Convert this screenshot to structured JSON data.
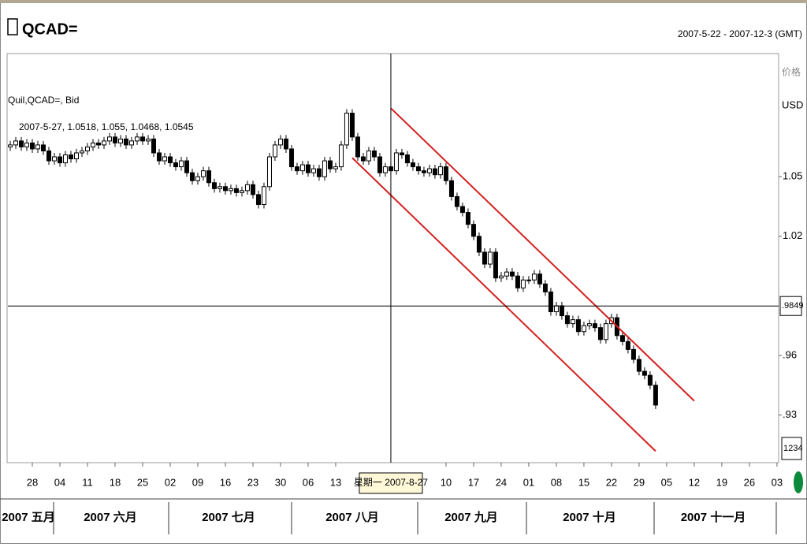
{
  "chart_data": {
    "type": "candlestick",
    "title": "QCAD=",
    "date_range": "2007-5-22 - 2007-12-3 (GMT)",
    "series_label": "Quil,QCAD=, Bid",
    "ohlc_label": "2007-5-27, 1.0518, 1.055, 1.0468, 1.0545",
    "axis_header": "价格",
    "currency": "USD",
    "x": [
      -4,
      -3,
      -2,
      -1,
      0,
      1,
      2,
      3,
      4,
      5,
      6,
      7,
      8,
      9,
      10,
      11,
      12,
      13,
      14,
      15,
      16,
      17,
      18,
      19,
      20,
      21,
      22,
      23,
      24,
      25,
      26,
      27,
      28,
      29,
      30,
      31,
      32,
      33,
      34,
      35,
      36,
      37,
      38,
      39,
      40,
      41,
      42,
      43,
      44,
      45,
      46,
      47,
      48,
      49,
      50,
      51,
      52,
      53,
      54,
      55,
      56,
      57,
      58,
      59,
      60,
      61,
      62,
      63,
      64,
      65,
      66,
      67,
      68,
      69,
      70,
      71,
      72,
      73,
      74,
      75,
      76,
      77,
      78,
      79,
      80,
      81,
      82,
      83,
      84,
      85,
      86,
      87,
      88,
      89,
      90,
      91,
      92,
      93,
      94,
      95,
      96,
      97,
      98,
      99,
      100,
      101,
      102,
      103,
      104,
      105,
      106,
      107,
      108,
      109,
      110,
      111,
      112,
      113
    ],
    "open": [
      1.065,
      1.066,
      1.068,
      1.065,
      1.067,
      1.064,
      1.066,
      1.063,
      1.058,
      1.06,
      1.057,
      1.061,
      1.059,
      1.062,
      1.063,
      1.065,
      1.067,
      1.066,
      1.068,
      1.07,
      1.067,
      1.069,
      1.066,
      1.068,
      1.07,
      1.068,
      1.069,
      1.062,
      1.058,
      1.06,
      1.057,
      1.055,
      1.058,
      1.052,
      1.048,
      1.05,
      1.053,
      1.047,
      1.044,
      1.045,
      1.043,
      1.044,
      1.042,
      1.043,
      1.046,
      1.041,
      1.036,
      1.045,
      1.06,
      1.066,
      1.069,
      1.064,
      1.055,
      1.053,
      1.056,
      1.052,
      1.054,
      1.05,
      1.058,
      1.054,
      1.055,
      1.066,
      1.082,
      1.07,
      1.06,
      1.058,
      1.063,
      1.06,
      1.052,
      1.055,
      1.053,
      1.062,
      1.061,
      1.057,
      1.055,
      1.053,
      1.052,
      1.054,
      1.051,
      1.055,
      1.048,
      1.04,
      1.035,
      1.032,
      1.026,
      1.02,
      1.012,
      1.006,
      1.012,
      0.999,
      1.0,
      1.002,
      1.0,
      0.994,
      0.998,
      0.998,
      1.001,
      0.996,
      0.992,
      0.982,
      0.985,
      0.98,
      0.976,
      0.978,
      0.972,
      0.975,
      0.976,
      0.974,
      0.968,
      0.976,
      0.979,
      0.97,
      0.967,
      0.963,
      0.958,
      0.952,
      0.95,
      0.945
    ],
    "high": [
      1.068,
      1.07,
      1.07,
      1.069,
      1.069,
      1.068,
      1.068,
      1.065,
      1.062,
      1.062,
      1.063,
      1.063,
      1.064,
      1.065,
      1.067,
      1.069,
      1.069,
      1.07,
      1.072,
      1.072,
      1.071,
      1.071,
      1.07,
      1.072,
      1.072,
      1.071,
      1.071,
      1.064,
      1.062,
      1.062,
      1.059,
      1.06,
      1.06,
      1.054,
      1.052,
      1.055,
      1.055,
      1.049,
      1.047,
      1.047,
      1.046,
      1.046,
      1.045,
      1.048,
      1.048,
      1.043,
      1.047,
      1.062,
      1.068,
      1.071,
      1.071,
      1.066,
      1.057,
      1.058,
      1.058,
      1.056,
      1.056,
      1.06,
      1.06,
      1.057,
      1.068,
      1.084,
      1.084,
      1.072,
      1.062,
      1.065,
      1.065,
      1.062,
      1.057,
      1.057,
      1.064,
      1.064,
      1.063,
      1.059,
      1.057,
      1.055,
      1.056,
      1.056,
      1.057,
      1.057,
      1.05,
      1.042,
      1.037,
      1.034,
      1.028,
      1.022,
      1.014,
      1.014,
      1.014,
      1.002,
      1.004,
      1.004,
      1.002,
      1.0,
      1.0,
      1.003,
      1.003,
      0.998,
      0.994,
      0.987,
      0.987,
      0.982,
      0.98,
      0.98,
      0.977,
      0.978,
      0.978,
      0.976,
      0.978,
      0.981,
      0.981,
      0.972,
      0.969,
      0.965,
      0.96,
      0.954,
      0.952,
      0.947
    ],
    "low": [
      1.063,
      1.064,
      1.063,
      1.063,
      1.062,
      1.062,
      1.061,
      1.056,
      1.056,
      1.055,
      1.055,
      1.057,
      1.057,
      1.06,
      1.061,
      1.063,
      1.064,
      1.064,
      1.066,
      1.065,
      1.065,
      1.064,
      1.064,
      1.066,
      1.066,
      1.066,
      1.06,
      1.056,
      1.056,
      1.055,
      1.053,
      1.053,
      1.05,
      1.046,
      1.046,
      1.048,
      1.045,
      1.042,
      1.042,
      1.041,
      1.041,
      1.04,
      1.04,
      1.041,
      1.039,
      1.034,
      1.034,
      1.043,
      1.058,
      1.064,
      1.062,
      1.053,
      1.051,
      1.051,
      1.05,
      1.05,
      1.048,
      1.048,
      1.052,
      1.052,
      1.053,
      1.064,
      1.068,
      1.058,
      1.056,
      1.056,
      1.058,
      1.05,
      1.05,
      1.051,
      1.051,
      1.059,
      1.055,
      1.053,
      1.051,
      1.05,
      1.05,
      1.049,
      1.049,
      1.046,
      1.038,
      1.033,
      1.03,
      1.024,
      1.018,
      1.01,
      1.004,
      1.004,
      0.997,
      0.997,
      0.998,
      0.998,
      0.992,
      0.992,
      0.996,
      0.996,
      0.994,
      0.99,
      0.98,
      0.98,
      0.978,
      0.974,
      0.974,
      0.97,
      0.97,
      0.973,
      0.972,
      0.966,
      0.966,
      0.974,
      0.968,
      0.965,
      0.961,
      0.956,
      0.95,
      0.948,
      0.943,
      0.933
    ],
    "close": [
      1.066,
      1.068,
      1.065,
      1.067,
      1.064,
      1.066,
      1.063,
      1.058,
      1.06,
      1.057,
      1.061,
      1.059,
      1.062,
      1.063,
      1.065,
      1.067,
      1.066,
      1.068,
      1.07,
      1.067,
      1.069,
      1.066,
      1.068,
      1.07,
      1.068,
      1.069,
      1.062,
      1.058,
      1.06,
      1.057,
      1.055,
      1.058,
      1.052,
      1.048,
      1.05,
      1.053,
      1.047,
      1.044,
      1.045,
      1.043,
      1.044,
      1.042,
      1.043,
      1.046,
      1.041,
      1.036,
      1.045,
      1.06,
      1.066,
      1.069,
      1.064,
      1.055,
      1.053,
      1.056,
      1.052,
      1.054,
      1.05,
      1.058,
      1.054,
      1.055,
      1.066,
      1.082,
      1.07,
      1.06,
      1.058,
      1.063,
      1.06,
      1.052,
      1.055,
      1.053,
      1.062,
      1.061,
      1.057,
      1.055,
      1.053,
      1.052,
      1.054,
      1.051,
      1.055,
      1.048,
      1.04,
      1.035,
      1.032,
      1.026,
      1.02,
      1.012,
      1.006,
      1.012,
      0.999,
      1.0,
      1.002,
      1.0,
      0.994,
      0.998,
      0.998,
      1.001,
      0.996,
      0.992,
      0.982,
      0.985,
      0.98,
      0.976,
      0.978,
      0.972,
      0.975,
      0.976,
      0.974,
      0.968,
      0.976,
      0.979,
      0.97,
      0.967,
      0.963,
      0.958,
      0.952,
      0.95,
      0.945,
      0.935
    ],
    "up_color": "#ffffff",
    "down_color": "#000000",
    "xlim": [
      -4.43,
      135.3
    ],
    "ylim": [
      0.906,
      1.112
    ],
    "xticks": [
      {
        "value": 0,
        "label": "28"
      },
      {
        "value": 5,
        "label": "04"
      },
      {
        "value": 10,
        "label": "11"
      },
      {
        "value": 15,
        "label": "18"
      },
      {
        "value": 20,
        "label": "25"
      },
      {
        "value": 25,
        "label": "02"
      },
      {
        "value": 30,
        "label": "09"
      },
      {
        "value": 35,
        "label": "16"
      },
      {
        "value": 40,
        "label": "23"
      },
      {
        "value": 45,
        "label": "30"
      },
      {
        "value": 50,
        "label": "06"
      },
      {
        "value": 55,
        "label": "13"
      },
      {
        "value": 75,
        "label": "10"
      },
      {
        "value": 80,
        "label": "17"
      },
      {
        "value": 85,
        "label": "24"
      },
      {
        "value": 90,
        "label": "01"
      },
      {
        "value": 95,
        "label": "08"
      },
      {
        "value": 100,
        "label": "15"
      },
      {
        "value": 105,
        "label": "22"
      },
      {
        "value": 110,
        "label": "29"
      },
      {
        "value": 115,
        "label": "05"
      },
      {
        "value": 120,
        "label": "12"
      },
      {
        "value": 125,
        "label": "19"
      },
      {
        "value": 130,
        "label": "26"
      },
      {
        "value": 135,
        "label": "03"
      }
    ],
    "yticks": [
      1.05,
      1.02,
      {
        "value": 0.96,
        "label": ".96"
      },
      {
        "value": 0.93,
        "label": ".93"
      }
    ],
    "month_labels": [
      "2007 五月",
      "2007 六月",
      "2007 七月",
      "2007 八月",
      "2007 九月",
      "2007 十月",
      "2007 十一月"
    ],
    "trend_lines": [
      {
        "color": "#d42020",
        "x": [
          65,
          120
        ],
        "y": [
          1.0845,
          0.9371
        ]
      },
      {
        "color": "#d42020",
        "x": [
          58,
          113
        ],
        "y": [
          1.0595,
          0.9118
        ]
      }
    ],
    "crosshair": {
      "x": 65,
      "y": 0.9849,
      "x_label": "星期一 2007-8-27",
      "y_label": ".9849"
    },
    "corner_label": "1234"
  }
}
